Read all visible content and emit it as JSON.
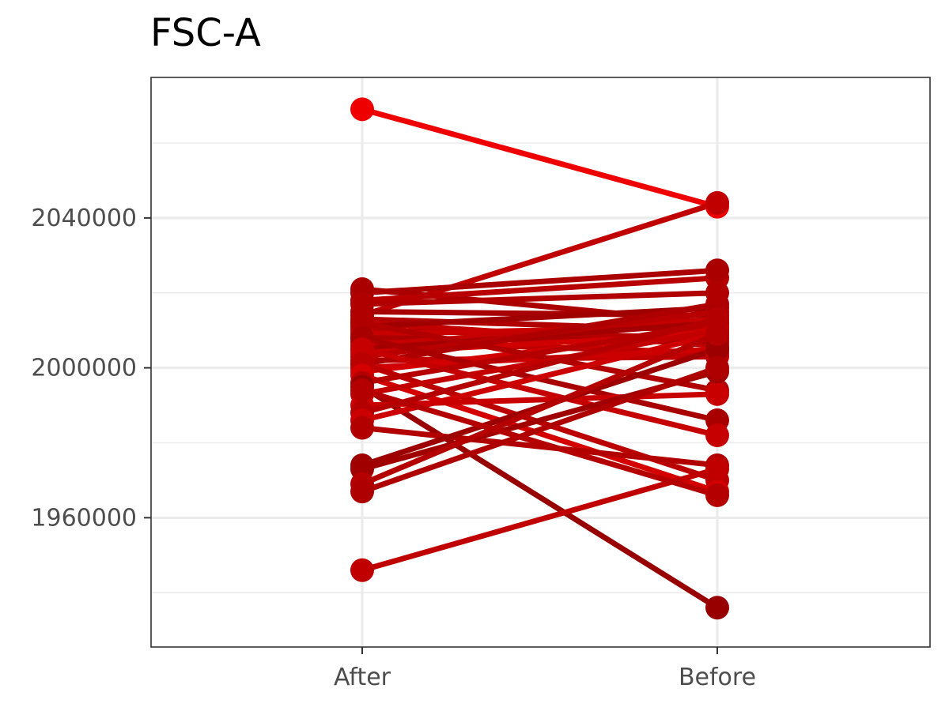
{
  "chart_data": {
    "type": "line",
    "title": "FSC-A",
    "xlabel": "",
    "ylabel": "",
    "categories": [
      "After",
      "Before"
    ],
    "y_ticks": [
      1960000,
      2000000,
      2040000
    ],
    "y_tick_labels": [
      "1960000",
      "2000000",
      "2040000"
    ],
    "ylim": [
      1925500,
      2077500
    ],
    "grid": true,
    "legend": "none",
    "pairs": [
      {
        "after": 2069000,
        "before": 2043000,
        "color": "#ee0000"
      },
      {
        "after": 2014000,
        "before": 2044000,
        "color": "#c00000"
      },
      {
        "after": 2021000,
        "before": 2012000,
        "color": "#aa0000"
      },
      {
        "after": 2018000,
        "before": 2024000,
        "color": "#b80000"
      },
      {
        "after": 2015000,
        "before": 2014000,
        "color": "#a80000"
      },
      {
        "after": 2013000,
        "before": 2010000,
        "color": "#b00000"
      },
      {
        "after": 2012000,
        "before": 2006000,
        "color": "#c20000"
      },
      {
        "after": 2011000,
        "before": 2016000,
        "color": "#a00000"
      },
      {
        "after": 2010000,
        "before": 2008000,
        "color": "#b40000"
      },
      {
        "after": 2009000,
        "before": 2011000,
        "color": "#c80000"
      },
      {
        "after": 2008000,
        "before": 2007000,
        "color": "#aa0000"
      },
      {
        "after": 2007000,
        "before": 2004000,
        "color": "#bc0000"
      },
      {
        "after": 2006000,
        "before": 2013000,
        "color": "#c40000"
      },
      {
        "after": 2005000,
        "before": 2012000,
        "color": "#a40000"
      },
      {
        "after": 2004000,
        "before": 2009000,
        "color": "#d00000"
      },
      {
        "after": 2003000,
        "before": 2015000,
        "color": "#b80000"
      },
      {
        "after": 2002000,
        "before": 2003000,
        "color": "#c00000"
      },
      {
        "after": 2001000,
        "before": 2017000,
        "color": "#ae0000"
      },
      {
        "after": 2000000,
        "before": 2005000,
        "color": "#cc0000"
      },
      {
        "after": 1999000,
        "before": 2010000,
        "color": "#d20000"
      },
      {
        "after": 2012000,
        "before": 1994000,
        "color": "#b00000"
      },
      {
        "after": 2008000,
        "before": 1986000,
        "color": "#a80000"
      },
      {
        "after": 2005000,
        "before": 1982000,
        "color": "#c60000"
      },
      {
        "after": 2001000,
        "before": 1970000,
        "color": "#ba0000"
      },
      {
        "after": 1998000,
        "before": 1967000,
        "color": "#d40000"
      },
      {
        "after": 1996000,
        "before": 2012000,
        "color": "#b60000"
      },
      {
        "after": 1995000,
        "before": 1936000,
        "color": "#980000"
      },
      {
        "after": 1993000,
        "before": 2010000,
        "color": "#c20000"
      },
      {
        "after": 1990000,
        "before": 1993000,
        "color": "#c80000"
      },
      {
        "after": 1988000,
        "before": 2013000,
        "color": "#b40000"
      },
      {
        "after": 1986000,
        "before": 2009000,
        "color": "#cc0000"
      },
      {
        "after": 1984000,
        "before": 1974000,
        "color": "#b20000"
      },
      {
        "after": 1974000,
        "before": 2005000,
        "color": "#9c0000"
      },
      {
        "after": 1973000,
        "before": 1999000,
        "color": "#a00000"
      },
      {
        "after": 1969000,
        "before": 2009000,
        "color": "#b40000"
      },
      {
        "after": 1967000,
        "before": 2000000,
        "color": "#ae0000"
      },
      {
        "after": 1946000,
        "before": 1973000,
        "color": "#c00000"
      },
      {
        "after": 2020000,
        "before": 2026000,
        "color": "#aa0000"
      },
      {
        "after": 1994000,
        "before": 1966000,
        "color": "#b40000"
      },
      {
        "after": 2017000,
        "before": 2020000,
        "color": "#b00000"
      }
    ]
  }
}
